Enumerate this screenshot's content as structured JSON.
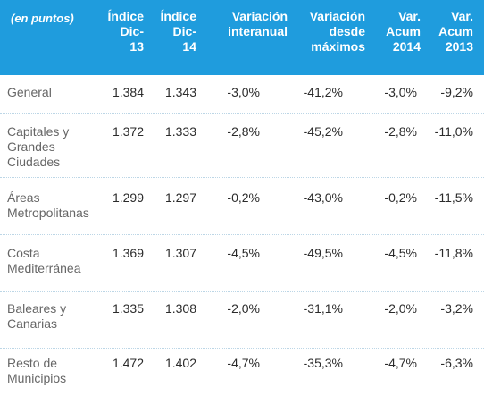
{
  "header": {
    "c0": "(en puntos)",
    "c1": "Índice\nDic-\n13",
    "c2": "Índice\nDic-\n14",
    "c3": "Variación\ninteranual",
    "c4": "Variación\ndesde\nmáximos",
    "c5": "Var.\nAcum\n2014",
    "c6": "Var.\nAcum\n2013"
  },
  "rows": [
    {
      "name": "General",
      "v1": "1.384",
      "v2": "1.343",
      "v3": "-3,0%",
      "v4": "-41,2%",
      "v5": "-3,0%",
      "v6": "-9,2%"
    },
    {
      "name": "Capitales y\nGrandes\nCiudades",
      "v1": "1.372",
      "v2": "1.333",
      "v3": "-2,8%",
      "v4": "-45,2%",
      "v5": "-2,8%",
      "v6": "-11,0%"
    },
    {
      "name": "Áreas\nMetropolitanas",
      "v1": "1.299",
      "v2": "1.297",
      "v3": "-0,2%",
      "v4": "-43,0%",
      "v5": "-0,2%",
      "v6": "-11,5%"
    },
    {
      "name": "Costa\nMediterránea",
      "v1": "1.369",
      "v2": "1.307",
      "v3": "-4,5%",
      "v4": "-49,5%",
      "v5": "-4,5%",
      "v6": "-11,8%"
    },
    {
      "name": "Baleares y\nCanarias",
      "v1": "1.335",
      "v2": "1.308",
      "v3": "-2,0%",
      "v4": "-31,1%",
      "v5": "-2,0%",
      "v6": "-3,2%"
    },
    {
      "name": "Resto de\nMunicipios",
      "v1": "1.472",
      "v2": "1.402",
      "v3": "-4,7%",
      "v4": "-35,3%",
      "v5": "-4,7%",
      "v6": "-6,3%"
    }
  ],
  "colors": {
    "header_bg": "#1f9cdd",
    "header_text": "#ffffff",
    "row_name": "#666666",
    "row_value": "#2b2b2b"
  }
}
